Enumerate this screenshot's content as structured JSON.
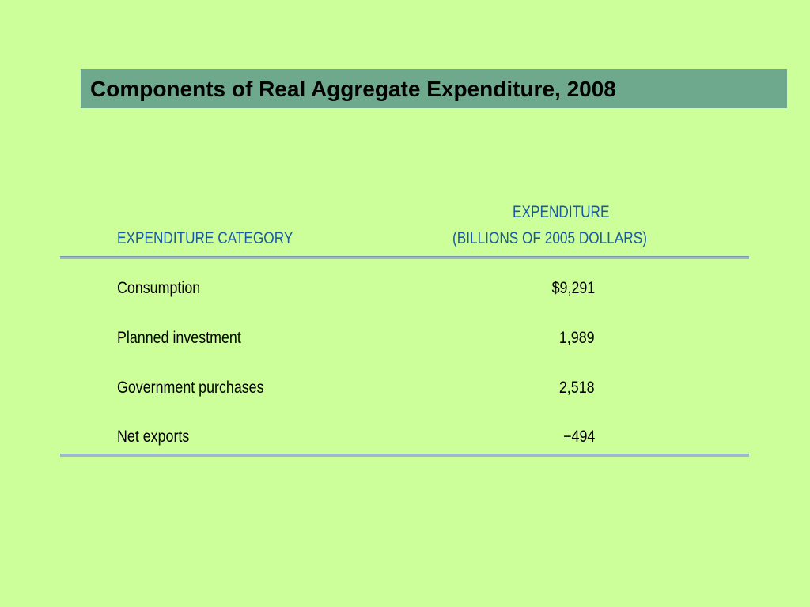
{
  "title": "Components of Real Aggregate Expenditure, 2008",
  "table": {
    "headers": {
      "category": "EXPENDITURE CATEGORY",
      "expenditure_line1": "EXPENDITURE",
      "expenditure_line2": "(BILLIONS OF 2005 DOLLARS)"
    },
    "rows": [
      {
        "category": "Consumption",
        "value": "$9,291"
      },
      {
        "category": "Planned investment",
        "value": "1,989"
      },
      {
        "category": "Government purchases",
        "value": "2,518"
      },
      {
        "category": "Net exports",
        "value": "−494"
      }
    ]
  },
  "colors": {
    "background": "#ccff99",
    "title_bar": "#6fa98d",
    "header_text": "#1a5aa0",
    "rule": "#9eb8c8"
  }
}
